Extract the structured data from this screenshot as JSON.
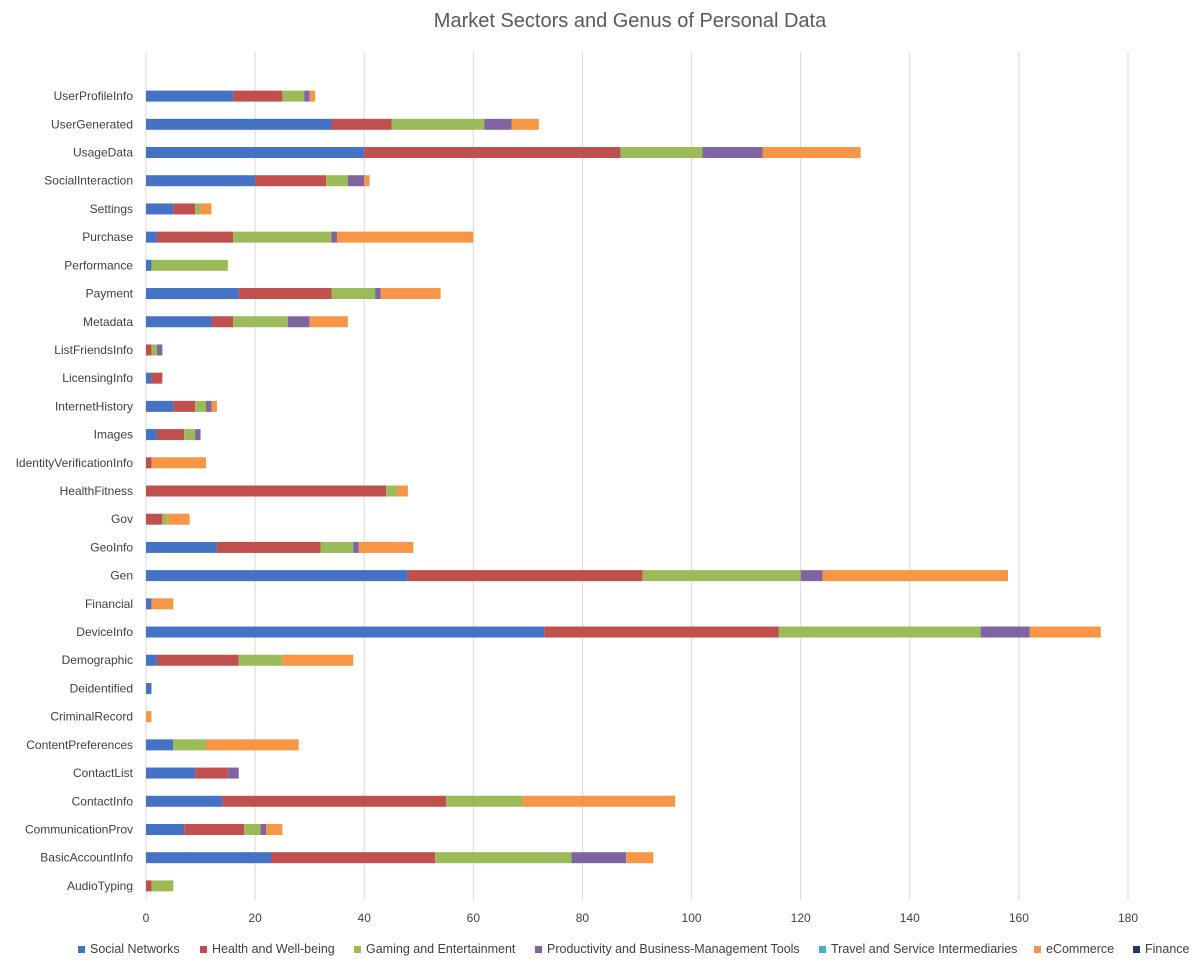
{
  "chart_data": {
    "type": "bar",
    "orientation": "horizontal",
    "stacked": true,
    "title": "Market Sectors and Genus of Personal Data",
    "xlabel": "",
    "ylabel": "",
    "xlim": [
      0,
      180
    ],
    "xticks": [
      0,
      20,
      40,
      60,
      80,
      100,
      120,
      140,
      160,
      180
    ],
    "grid": true,
    "legend_position": "bottom",
    "categories": [
      "UserProfileInfo",
      "UserGenerated",
      "UsageData",
      "SocialInteraction",
      "Settings",
      "Purchase",
      "Performance",
      "Payment",
      "Metadata",
      "ListFriendsInfo",
      "LicensingInfo",
      "InternetHistory",
      "Images",
      "IdentityVerificationInfo",
      "HealthFitness",
      "Gov",
      "GeoInfo",
      "Gen",
      "Financial",
      "DeviceInfo",
      "Demographic",
      "Deidentified",
      "CriminalRecord",
      "ContentPreferences",
      "ContactList",
      "ContactInfo",
      "CommunicationProv",
      "BasicAccountInfo",
      "AudioTyping"
    ],
    "series": [
      {
        "name": "Social Networks",
        "color": "#4472C4",
        "values": [
          16,
          34,
          40,
          20,
          5,
          2,
          1,
          17,
          12,
          0,
          1,
          5,
          2,
          0,
          0,
          0,
          13,
          48,
          1,
          73,
          2,
          1,
          0,
          5,
          9,
          14,
          7,
          23,
          0
        ]
      },
      {
        "name": "Health and Well-being",
        "color": "#C0504D",
        "values": [
          9,
          11,
          47,
          13,
          4,
          14,
          0,
          17,
          4,
          1,
          2,
          4,
          5,
          1,
          44,
          3,
          19,
          43,
          0,
          43,
          15,
          0,
          0,
          0,
          6,
          41,
          11,
          30,
          1
        ]
      },
      {
        "name": "Gaming and Entertainment",
        "color": "#9BBB59",
        "values": [
          4,
          17,
          15,
          4,
          1,
          18,
          14,
          8,
          10,
          1,
          0,
          2,
          2,
          0,
          2,
          1,
          6,
          29,
          0,
          37,
          8,
          0,
          0,
          6,
          0,
          14,
          3,
          25,
          4
        ]
      },
      {
        "name": "Productivity and Business-Management Tools",
        "color": "#8064A2",
        "values": [
          1,
          5,
          11,
          3,
          0,
          1,
          0,
          1,
          4,
          1,
          0,
          1,
          1,
          0,
          0,
          0,
          1,
          4,
          0,
          9,
          0,
          0,
          0,
          0,
          2,
          0,
          1,
          10,
          0
        ]
      },
      {
        "name": "Travel and Service Intermediaries",
        "color": "#4BACC6",
        "values": [
          0,
          0,
          0,
          0,
          0,
          0,
          0,
          0,
          0,
          0,
          0,
          0,
          0,
          0,
          0,
          0,
          0,
          0,
          0,
          0,
          0,
          0,
          0,
          0,
          0,
          0,
          0,
          0,
          0
        ]
      },
      {
        "name": "eCommerce",
        "color": "#F79646",
        "values": [
          1,
          5,
          18,
          1,
          2,
          25,
          0,
          11,
          7,
          0,
          0,
          1,
          0,
          10,
          2,
          4,
          10,
          34,
          4,
          13,
          13,
          0,
          1,
          17,
          0,
          28,
          3,
          5,
          0
        ]
      },
      {
        "name": "Finance",
        "color": "#1F3864",
        "values": [
          0,
          0,
          0,
          0,
          0,
          0,
          0,
          0,
          0,
          0,
          0,
          0,
          0,
          0,
          0,
          0,
          0,
          0,
          0,
          0,
          0,
          0,
          0,
          0,
          0,
          0,
          0,
          0,
          0
        ]
      }
    ]
  }
}
